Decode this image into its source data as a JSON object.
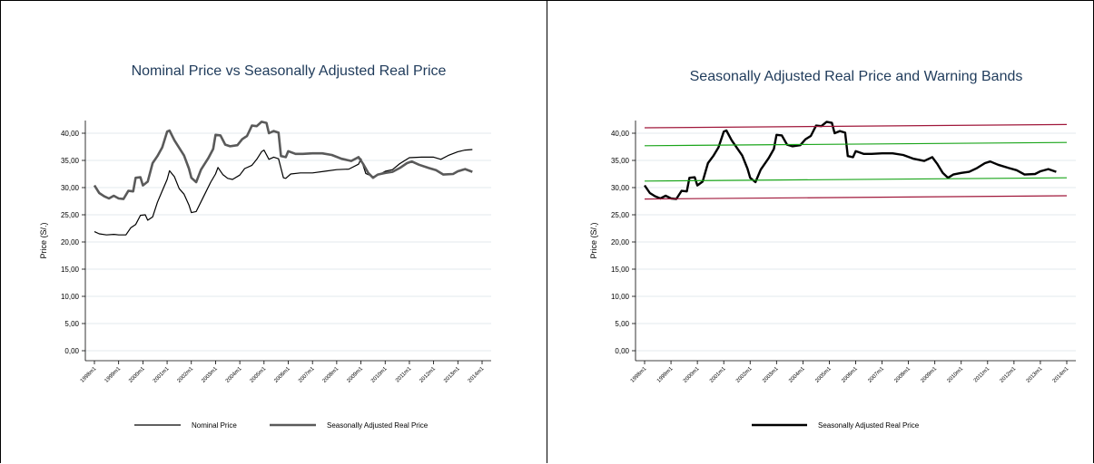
{
  "chart_data": [
    {
      "type": "line",
      "title": "Nominal Price vs Seasonally Adjusted Real Price",
      "xlabel": "",
      "ylabel": "Price (S/.)",
      "ylim": [
        0,
        42
      ],
      "yticks": [
        "0,00",
        "5,00",
        "10,00",
        "15,00",
        "20,00",
        "25,00",
        "30,00",
        "35,00",
        "40,00"
      ],
      "xticks": [
        "1998m1",
        "1999m1",
        "2000m1",
        "2001m1",
        "2002m1",
        "2003m1",
        "2004m1",
        "2005m1",
        "2006m1",
        "2007m1",
        "2008m1",
        "2009m1",
        "2010m1",
        "2011m1",
        "2012m1",
        "2013m1",
        "2014m1"
      ],
      "grid": true,
      "legend": "bottom",
      "series": [
        {
          "name": "Nominal Price",
          "color": "#000000",
          "points": [
            [
              1998.0,
              21.9
            ],
            [
              1998.2,
              21.5
            ],
            [
              1998.5,
              21.3
            ],
            [
              1998.8,
              21.4
            ],
            [
              1999.0,
              21.3
            ],
            [
              1999.3,
              21.3
            ],
            [
              1999.5,
              22.6
            ],
            [
              1999.7,
              23.2
            ],
            [
              1999.9,
              24.9
            ],
            [
              2000.1,
              25.0
            ],
            [
              2000.2,
              24.0
            ],
            [
              2000.4,
              24.6
            ],
            [
              2000.6,
              27.3
            ],
            [
              2000.8,
              29.4
            ],
            [
              2001.0,
              31.5
            ],
            [
              2001.1,
              33.1
            ],
            [
              2001.3,
              32.0
            ],
            [
              2001.5,
              29.8
            ],
            [
              2001.7,
              28.8
            ],
            [
              2001.9,
              26.8
            ],
            [
              2002.0,
              25.4
            ],
            [
              2002.2,
              25.6
            ],
            [
              2002.5,
              28.3
            ],
            [
              2002.8,
              31.0
            ],
            [
              2003.0,
              32.5
            ],
            [
              2003.1,
              33.7
            ],
            [
              2003.3,
              32.4
            ],
            [
              2003.5,
              31.7
            ],
            [
              2003.7,
              31.5
            ],
            [
              2004.0,
              32.3
            ],
            [
              2004.2,
              33.5
            ],
            [
              2004.5,
              34.1
            ],
            [
              2004.7,
              35.2
            ],
            [
              2004.9,
              36.6
            ],
            [
              2005.0,
              36.9
            ],
            [
              2005.2,
              35.2
            ],
            [
              2005.4,
              35.6
            ],
            [
              2005.6,
              35.3
            ],
            [
              2005.8,
              31.8
            ],
            [
              2005.9,
              31.7
            ],
            [
              2006.1,
              32.5
            ],
            [
              2006.5,
              32.7
            ],
            [
              2007.0,
              32.7
            ],
            [
              2007.5,
              33.0
            ],
            [
              2008.0,
              33.3
            ],
            [
              2008.5,
              33.4
            ],
            [
              2008.9,
              34.3
            ],
            [
              2009.0,
              35.3
            ],
            [
              2009.2,
              32.6
            ],
            [
              2009.5,
              32.0
            ],
            [
              2009.8,
              32.5
            ],
            [
              2010.0,
              33.0
            ],
            [
              2010.3,
              33.3
            ],
            [
              2010.6,
              34.4
            ],
            [
              2011.0,
              35.5
            ],
            [
              2011.5,
              35.6
            ],
            [
              2012.0,
              35.6
            ],
            [
              2012.3,
              35.2
            ],
            [
              2012.6,
              35.9
            ],
            [
              2013.0,
              36.6
            ],
            [
              2013.3,
              36.9
            ],
            [
              2013.6,
              37.0
            ]
          ]
        },
        {
          "name": "Seasonally Adjusted Real Price",
          "color": "#5a5a5a",
          "points": [
            [
              1998.0,
              30.4
            ],
            [
              1998.2,
              29.0
            ],
            [
              1998.4,
              28.4
            ],
            [
              1998.6,
              28.0
            ],
            [
              1998.8,
              28.5
            ],
            [
              1999.0,
              28.0
            ],
            [
              1999.2,
              27.9
            ],
            [
              1999.4,
              29.4
            ],
            [
              1999.6,
              29.3
            ],
            [
              1999.7,
              31.8
            ],
            [
              1999.9,
              31.9
            ],
            [
              2000.0,
              30.4
            ],
            [
              2000.2,
              31.1
            ],
            [
              2000.4,
              34.5
            ],
            [
              2000.6,
              35.8
            ],
            [
              2000.8,
              37.4
            ],
            [
              2001.0,
              40.3
            ],
            [
              2001.1,
              40.5
            ],
            [
              2001.3,
              38.7
            ],
            [
              2001.5,
              37.3
            ],
            [
              2001.7,
              35.9
            ],
            [
              2001.9,
              33.5
            ],
            [
              2002.0,
              31.8
            ],
            [
              2002.2,
              31.0
            ],
            [
              2002.4,
              33.3
            ],
            [
              2002.7,
              35.4
            ],
            [
              2002.9,
              37.1
            ],
            [
              2003.0,
              39.7
            ],
            [
              2003.2,
              39.6
            ],
            [
              2003.4,
              37.9
            ],
            [
              2003.6,
              37.6
            ],
            [
              2003.9,
              37.8
            ],
            [
              2004.1,
              38.9
            ],
            [
              2004.3,
              39.5
            ],
            [
              2004.5,
              41.4
            ],
            [
              2004.7,
              41.3
            ],
            [
              2004.9,
              42.1
            ],
            [
              2005.1,
              41.9
            ],
            [
              2005.2,
              40.0
            ],
            [
              2005.4,
              40.4
            ],
            [
              2005.6,
              40.1
            ],
            [
              2005.7,
              35.8
            ],
            [
              2005.9,
              35.6
            ],
            [
              2006.0,
              36.7
            ],
            [
              2006.3,
              36.2
            ],
            [
              2006.6,
              36.2
            ],
            [
              2007.0,
              36.3
            ],
            [
              2007.4,
              36.3
            ],
            [
              2007.8,
              36.0
            ],
            [
              2008.2,
              35.3
            ],
            [
              2008.6,
              34.9
            ],
            [
              2008.9,
              35.6
            ],
            [
              2009.1,
              34.3
            ],
            [
              2009.3,
              32.7
            ],
            [
              2009.5,
              31.8
            ],
            [
              2009.7,
              32.4
            ],
            [
              2010.0,
              32.7
            ],
            [
              2010.3,
              32.9
            ],
            [
              2010.6,
              33.6
            ],
            [
              2010.9,
              34.5
            ],
            [
              2011.1,
              34.8
            ],
            [
              2011.4,
              34.2
            ],
            [
              2011.8,
              33.6
            ],
            [
              2012.1,
              33.2
            ],
            [
              2012.4,
              32.4
            ],
            [
              2012.8,
              32.5
            ],
            [
              2013.0,
              33.0
            ],
            [
              2013.3,
              33.4
            ],
            [
              2013.6,
              32.9
            ]
          ]
        }
      ]
    },
    {
      "type": "line",
      "title": "Seasonally Adjusted Real Price and Warning Bands",
      "xlabel": "",
      "ylabel": "Price (S/.)",
      "ylim": [
        0,
        42
      ],
      "yticks": [
        "0,00",
        "5,00",
        "10,00",
        "15,00",
        "20,00",
        "25,00",
        "30,00",
        "35,00",
        "40,00"
      ],
      "xticks": [
        "1998m1",
        "1999m1",
        "2000m1",
        "2001m1",
        "2002m1",
        "2003m1",
        "2004m1",
        "2005m1",
        "2006m1",
        "2007m1",
        "2008m1",
        "2009m1",
        "2010m1",
        "2011m1",
        "2012m1",
        "2013m1",
        "2014m1"
      ],
      "grid": true,
      "legend": "bottom",
      "series": [
        {
          "name": "Seasonally Adjusted Real Price",
          "color": "#000000",
          "points": [
            [
              1998.0,
              30.4
            ],
            [
              1998.2,
              29.0
            ],
            [
              1998.4,
              28.4
            ],
            [
              1998.6,
              28.0
            ],
            [
              1998.8,
              28.5
            ],
            [
              1999.0,
              28.0
            ],
            [
              1999.2,
              27.9
            ],
            [
              1999.4,
              29.4
            ],
            [
              1999.6,
              29.3
            ],
            [
              1999.7,
              31.8
            ],
            [
              1999.9,
              31.9
            ],
            [
              2000.0,
              30.4
            ],
            [
              2000.2,
              31.1
            ],
            [
              2000.4,
              34.5
            ],
            [
              2000.6,
              35.8
            ],
            [
              2000.8,
              37.4
            ],
            [
              2001.0,
              40.3
            ],
            [
              2001.1,
              40.5
            ],
            [
              2001.3,
              38.7
            ],
            [
              2001.5,
              37.3
            ],
            [
              2001.7,
              35.9
            ],
            [
              2001.9,
              33.5
            ],
            [
              2002.0,
              31.8
            ],
            [
              2002.2,
              31.0
            ],
            [
              2002.4,
              33.3
            ],
            [
              2002.7,
              35.4
            ],
            [
              2002.9,
              37.1
            ],
            [
              2003.0,
              39.7
            ],
            [
              2003.2,
              39.6
            ],
            [
              2003.4,
              37.9
            ],
            [
              2003.6,
              37.6
            ],
            [
              2003.9,
              37.8
            ],
            [
              2004.1,
              38.9
            ],
            [
              2004.3,
              39.5
            ],
            [
              2004.5,
              41.4
            ],
            [
              2004.7,
              41.3
            ],
            [
              2004.9,
              42.1
            ],
            [
              2005.1,
              41.9
            ],
            [
              2005.2,
              40.0
            ],
            [
              2005.4,
              40.4
            ],
            [
              2005.6,
              40.1
            ],
            [
              2005.7,
              35.8
            ],
            [
              2005.9,
              35.6
            ],
            [
              2006.0,
              36.7
            ],
            [
              2006.3,
              36.2
            ],
            [
              2006.6,
              36.2
            ],
            [
              2007.0,
              36.3
            ],
            [
              2007.4,
              36.3
            ],
            [
              2007.8,
              36.0
            ],
            [
              2008.2,
              35.3
            ],
            [
              2008.6,
              34.9
            ],
            [
              2008.9,
              35.6
            ],
            [
              2009.1,
              34.3
            ],
            [
              2009.3,
              32.7
            ],
            [
              2009.5,
              31.8
            ],
            [
              2009.7,
              32.4
            ],
            [
              2010.0,
              32.7
            ],
            [
              2010.3,
              32.9
            ],
            [
              2010.6,
              33.6
            ],
            [
              2010.9,
              34.5
            ],
            [
              2011.1,
              34.8
            ],
            [
              2011.4,
              34.2
            ],
            [
              2011.8,
              33.6
            ],
            [
              2012.1,
              33.2
            ],
            [
              2012.4,
              32.4
            ],
            [
              2012.8,
              32.5
            ],
            [
              2013.0,
              33.0
            ],
            [
              2013.3,
              33.4
            ],
            [
              2013.6,
              32.9
            ]
          ]
        },
        {
          "color": "#a0173a",
          "points": [
            [
              1998.0,
              41.0
            ],
            [
              2014.0,
              41.6
            ]
          ]
        },
        {
          "color": "#1aa51a",
          "points": [
            [
              1998.0,
              37.7
            ],
            [
              2014.0,
              38.3
            ]
          ]
        },
        {
          "color": "#1aa51a",
          "points": [
            [
              1998.0,
              31.2
            ],
            [
              2014.0,
              31.8
            ]
          ]
        },
        {
          "color": "#a0173a",
          "points": [
            [
              1998.0,
              27.9
            ],
            [
              2014.0,
              28.5
            ]
          ]
        }
      ]
    }
  ]
}
